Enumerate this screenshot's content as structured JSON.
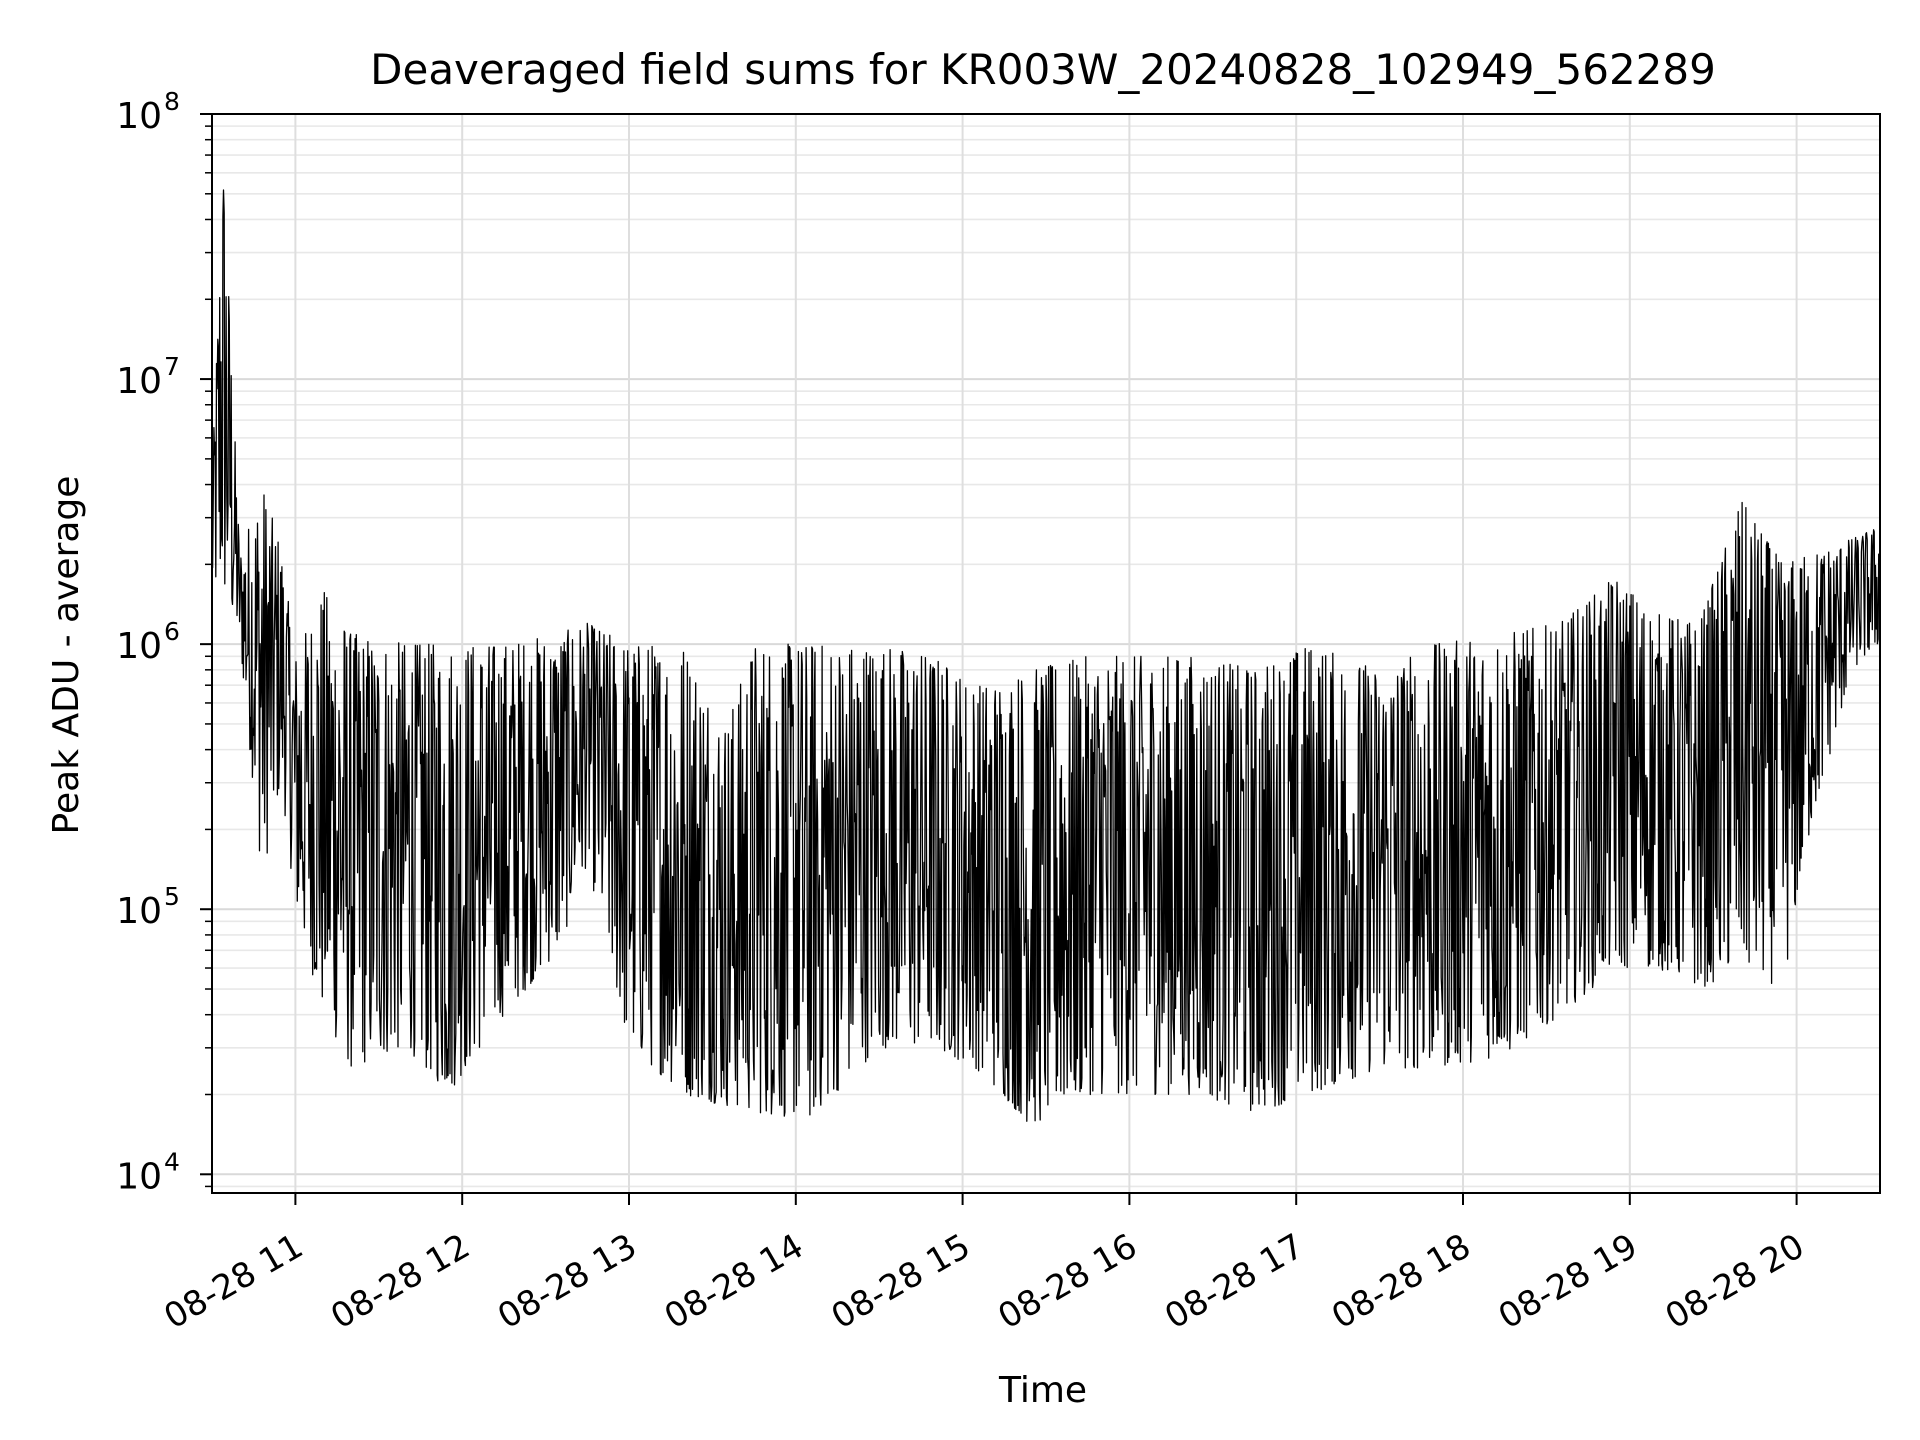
{
  "chart_data": {
    "type": "line",
    "title": "Deaveraged field sums for KR003W_20240828_102949_562289",
    "xlabel": "Time",
    "ylabel": "Peak ADU - average",
    "x_scale": "time",
    "y_scale": "log",
    "xlim": [
      "2024-08-28 10:30",
      "2024-08-28 20:30"
    ],
    "ylim": [
      8500,
      100000000
    ],
    "x_ticks": [
      "2024-08-28 11:00",
      "2024-08-28 12:00",
      "2024-08-28 13:00",
      "2024-08-28 14:00",
      "2024-08-28 15:00",
      "2024-08-28 16:00",
      "2024-08-28 17:00",
      "2024-08-28 18:00",
      "2024-08-28 19:00",
      "2024-08-28 20:00"
    ],
    "x_tick_labels": [
      "08-28 11",
      "08-28 12",
      "08-28 13",
      "08-28 14",
      "08-28 15",
      "08-28 16",
      "08-28 17",
      "08-28 18",
      "08-28 19",
      "08-28 20"
    ],
    "y_ticks": [
      10000,
      100000,
      1000000,
      10000000,
      100000000
    ],
    "y_tick_labels": [
      {
        "base": "10",
        "exp": "4"
      },
      {
        "base": "10",
        "exp": "5"
      },
      {
        "base": "10",
        "exp": "6"
      },
      {
        "base": "10",
        "exp": "7"
      },
      {
        "base": "10",
        "exp": "8"
      }
    ],
    "grid": true,
    "grid_minor": true,
    "series": [
      {
        "color": "#000000",
        "envelope": [
          {
            "t": "2024-08-28 10:30",
            "low": 1500000,
            "high": 4000000
          },
          {
            "t": "2024-08-28 10:34",
            "low": 1500000,
            "high": 70000000
          },
          {
            "t": "2024-08-28 10:40",
            "low": 1000000,
            "high": 2200000
          },
          {
            "t": "2024-08-28 10:48",
            "low": 130000,
            "high": 4000000
          },
          {
            "t": "2024-08-28 10:55",
            "low": 300000,
            "high": 2300000
          },
          {
            "t": "2024-08-28 11:00",
            "low": 100000,
            "high": 900000
          },
          {
            "t": "2024-08-28 11:10",
            "low": 40000,
            "high": 1600000
          },
          {
            "t": "2024-08-28 11:20",
            "low": 25000,
            "high": 1100000
          },
          {
            "t": "2024-08-28 11:40",
            "low": 30000,
            "high": 1000000
          },
          {
            "t": "2024-08-28 11:55",
            "low": 20000,
            "high": 1000000
          },
          {
            "t": "2024-08-28 12:15",
            "low": 40000,
            "high": 1000000
          },
          {
            "t": "2024-08-28 12:35",
            "low": 70000,
            "high": 1100000
          },
          {
            "t": "2024-08-28 12:45",
            "low": 150000,
            "high": 1200000
          },
          {
            "t": "2024-08-28 13:00",
            "low": 30000,
            "high": 1000000
          },
          {
            "t": "2024-08-28 13:20",
            "low": 20000,
            "high": 1000000
          },
          {
            "t": "2024-08-28 13:35",
            "low": 18000,
            "high": 500000
          },
          {
            "t": "2024-08-28 13:45",
            "low": 17000,
            "high": 1000000
          },
          {
            "t": "2024-08-28 14:05",
            "low": 16000,
            "high": 1000000
          },
          {
            "t": "2024-08-28 14:30",
            "low": 30000,
            "high": 1000000
          },
          {
            "t": "2024-08-28 14:50",
            "low": 30000,
            "high": 900000
          },
          {
            "t": "2024-08-28 15:05",
            "low": 25000,
            "high": 700000
          },
          {
            "t": "2024-08-28 15:25",
            "low": 15000,
            "high": 800000
          },
          {
            "t": "2024-08-28 15:45",
            "low": 20000,
            "high": 900000
          },
          {
            "t": "2024-08-28 16:05",
            "low": 20000,
            "high": 900000
          },
          {
            "t": "2024-08-28 16:25",
            "low": 20000,
            "high": 900000
          },
          {
            "t": "2024-08-28 16:45",
            "low": 17000,
            "high": 800000
          },
          {
            "t": "2024-08-28 17:05",
            "low": 20000,
            "high": 1000000
          },
          {
            "t": "2024-08-28 17:30",
            "low": 25000,
            "high": 800000
          },
          {
            "t": "2024-08-28 17:50",
            "low": 25000,
            "high": 1000000
          },
          {
            "t": "2024-08-28 18:15",
            "low": 28000,
            "high": 1100000
          },
          {
            "t": "2024-08-28 18:35",
            "low": 40000,
            "high": 1200000
          },
          {
            "t": "2024-08-28 18:55",
            "low": 60000,
            "high": 1800000
          },
          {
            "t": "2024-08-28 19:10",
            "low": 60000,
            "high": 1300000
          },
          {
            "t": "2024-08-28 19:25",
            "low": 50000,
            "high": 1200000
          },
          {
            "t": "2024-08-28 19:40",
            "low": 60000,
            "high": 3500000
          },
          {
            "t": "2024-08-28 19:55",
            "low": 50000,
            "high": 2000000
          },
          {
            "t": "2024-08-28 20:05",
            "low": 200000,
            "high": 2200000
          },
          {
            "t": "2024-08-28 20:20",
            "low": 800000,
            "high": 2500000
          },
          {
            "t": "2024-08-28 20:30",
            "low": 1000000,
            "high": 2800000
          }
        ]
      }
    ]
  }
}
